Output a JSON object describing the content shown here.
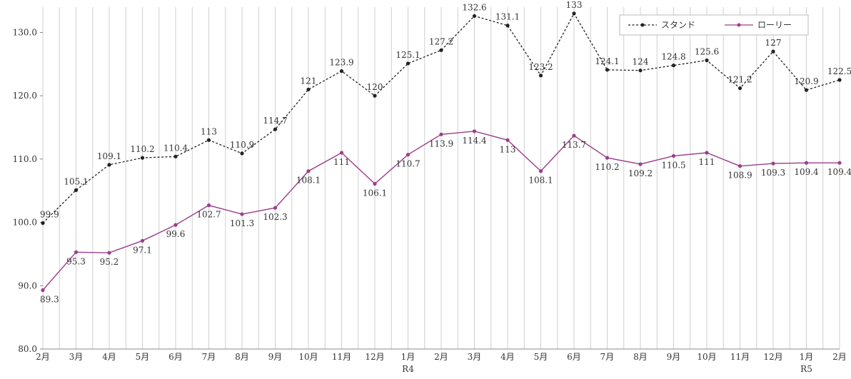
{
  "chart_data": {
    "type": "line",
    "categories": [
      "2月",
      "3月",
      "4月",
      "5月",
      "6月",
      "7月",
      "8月",
      "9月",
      "10月",
      "11月",
      "12月",
      "1月",
      "2月",
      "3月",
      "4月",
      "5月",
      "6月",
      "7月",
      "8月",
      "9月",
      "10月",
      "11月",
      "12月",
      "1月",
      "2月"
    ],
    "year_markers": [
      {
        "index": 11,
        "label": "R4"
      },
      {
        "index": 23,
        "label": "R5"
      }
    ],
    "yticks": [
      "80.0",
      "90.0",
      "100.0",
      "110.0",
      "120.0",
      "130.0"
    ],
    "ylim": [
      80,
      134
    ],
    "grid": true,
    "legend_position": "top-right",
    "series": [
      {
        "name": "スタンド",
        "color": "#222222",
        "style": "dashed",
        "values": [
          99.9,
          105.1,
          109.1,
          110.2,
          110.4,
          113,
          110.9,
          114.7,
          121,
          123.9,
          120,
          125.1,
          127.2,
          132.6,
          131.1,
          123.2,
          133,
          124.1,
          124,
          124.8,
          125.6,
          121.2,
          127,
          120.9,
          122.5
        ],
        "labels": [
          "99.9",
          "105.1",
          "109.1",
          "110.2",
          "110.4",
          "113",
          "110.9",
          "114.7",
          "121",
          "123.9",
          "120",
          "125.1",
          "127.2",
          "132.6",
          "131.1",
          "123.2",
          "133",
          "124.1",
          "124",
          "124.8",
          "125.6",
          "121.2",
          "127",
          "120.9",
          "122.5"
        ]
      },
      {
        "name": "ローリー",
        "color": "#9b3d8c",
        "style": "solid",
        "values": [
          89.3,
          95.3,
          95.2,
          97.1,
          99.6,
          102.7,
          101.3,
          102.3,
          108.1,
          111,
          106.1,
          110.7,
          113.9,
          114.4,
          113,
          108.1,
          113.7,
          110.2,
          109.2,
          110.5,
          111,
          108.9,
          109.3,
          109.4,
          109.4
        ],
        "labels": [
          "89.3",
          "95.3",
          "95.2",
          "97.1",
          "99.6",
          "102.7",
          "101.3",
          "102.3",
          "108.1",
          "111",
          "106.1",
          "110.7",
          "113.9",
          "114.4",
          "113",
          "108.1",
          "113.7",
          "110.2",
          "109.2",
          "110.5",
          "111",
          "108.9",
          "109.3",
          "109.4",
          "109.4"
        ]
      }
    ]
  }
}
